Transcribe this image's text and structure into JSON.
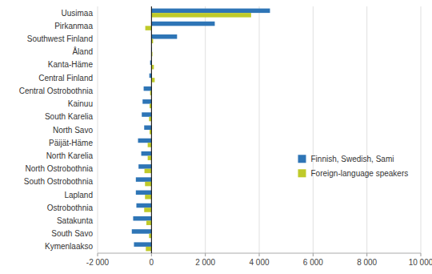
{
  "chart_data": {
    "type": "bar",
    "orientation": "horizontal",
    "categories": [
      "Uusimaa",
      "Pirkanmaa",
      "Southwest Finland",
      "Åland",
      "Kanta-Häme",
      "Central Finland",
      "Central Ostrobothnia",
      "Kainuu",
      "South Karelia",
      "North Savo",
      "Päijät-Häme",
      "North Karelia",
      "North Ostrobothnia",
      "South Ostrobothnia",
      "Lapland",
      "Ostrobothnia",
      "Satakunta",
      "South Savo",
      "Kymenlaakso"
    ],
    "series": [
      {
        "name": "Finnish, Swedish, Sami",
        "color": "#2E75B6",
        "values": [
          4400,
          2350,
          950,
          20,
          -50,
          -80,
          -290,
          -330,
          -360,
          -270,
          -500,
          -380,
          -480,
          -580,
          -580,
          -560,
          -680,
          -730,
          -650
        ]
      },
      {
        "name": "Foreign-language speakers",
        "color": "#BFCA2A",
        "values": [
          3700,
          -230,
          60,
          35,
          90,
          120,
          -50,
          -70,
          -90,
          -70,
          -140,
          -140,
          -260,
          -240,
          -240,
          -270,
          -190,
          -90,
          -210
        ]
      }
    ],
    "xlim": [
      -2000,
      10000
    ],
    "xticks": [
      {
        "value": -2000,
        "label": "-2 000"
      },
      0,
      {
        "value": 2000,
        "label": "2 000"
      },
      {
        "value": 4000,
        "label": "4 000"
      },
      {
        "value": 6000,
        "label": "6 000"
      },
      {
        "value": 8000,
        "label": "8 000"
      },
      {
        "value": 10000,
        "label": "10 000"
      }
    ],
    "grid": true,
    "legend": "right"
  }
}
